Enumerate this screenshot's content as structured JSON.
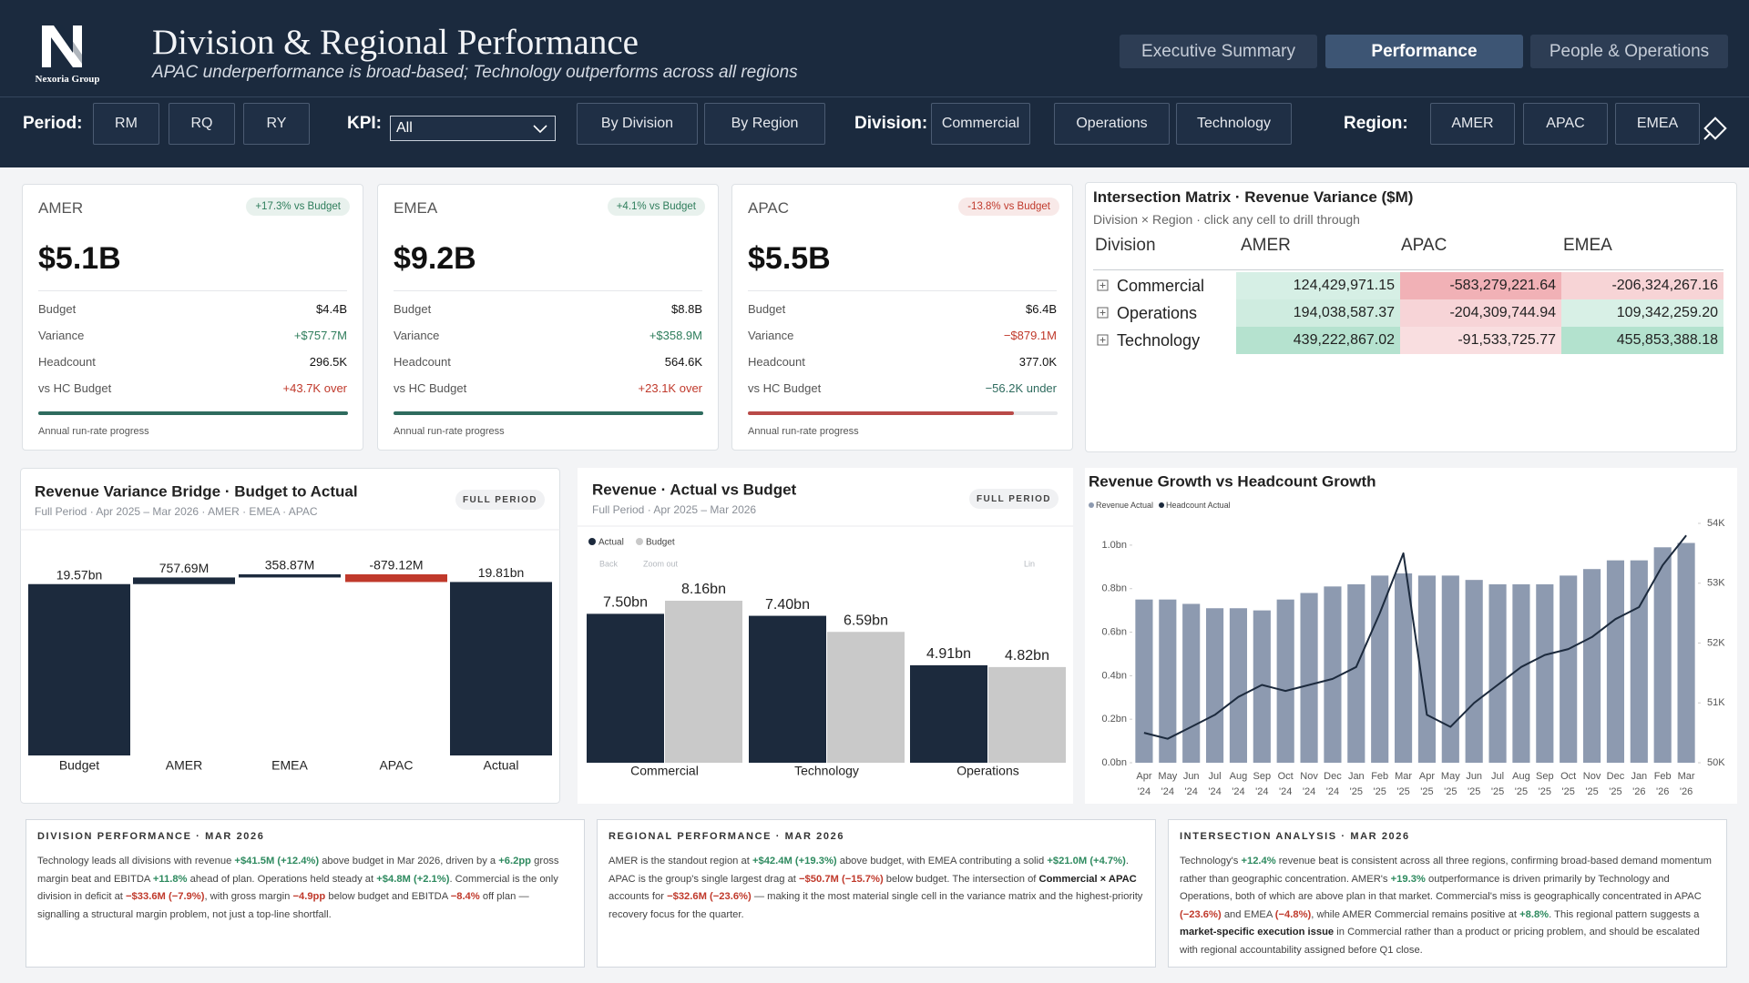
{
  "header": {
    "company": "Nexoria Group",
    "title": "Division & Regional Performance",
    "subtitle": "APAC underperformance is broad-based; Technology outperforms across all regions",
    "tabs": [
      "Executive Summary",
      "Performance",
      "People & Operations"
    ]
  },
  "filters": {
    "period_label": "Period:",
    "periods": [
      "RM",
      "RQ",
      "RY"
    ],
    "kpi_label": "KPI:",
    "kpi_value": "All",
    "views": [
      "By Division",
      "By Region"
    ],
    "division_label": "Division:",
    "divisions": [
      "Commercial",
      "Operations",
      "Technology"
    ],
    "region_label": "Region:",
    "regions": [
      "AMER",
      "APAC",
      "EMEA"
    ]
  },
  "kpi_cards": [
    {
      "region": "AMER",
      "badge": "+17.3% vs Budget",
      "badge_color": "#2e7d5b",
      "value": "$5.1B",
      "rows": [
        {
          "label": "Budget",
          "value": "$4.4B"
        },
        {
          "label": "Variance",
          "value": "+$757.7M",
          "color": "#2e7d5b"
        },
        {
          "label": "Headcount",
          "value": "296.5K"
        },
        {
          "label": "vs HC Budget",
          "value": "+43.7K over",
          "color": "#c0392b"
        }
      ],
      "progress": 100,
      "progress_color": "#2e6b5e",
      "progress_label": "Annual run-rate progress"
    },
    {
      "region": "EMEA",
      "badge": "+4.1% vs Budget",
      "badge_color": "#2e7d5b",
      "value": "$9.2B",
      "rows": [
        {
          "label": "Budget",
          "value": "$8.8B"
        },
        {
          "label": "Variance",
          "value": "+$358.9M",
          "color": "#2e7d5b"
        },
        {
          "label": "Headcount",
          "value": "564.6K"
        },
        {
          "label": "vs HC Budget",
          "value": "+23.1K over",
          "color": "#c0392b"
        }
      ],
      "progress": 100,
      "progress_color": "#2e6b5e",
      "progress_label": "Annual run-rate progress"
    },
    {
      "region": "APAC",
      "badge": "-13.8% vs Budget",
      "badge_color": "#c0392b",
      "value": "$5.5B",
      "rows": [
        {
          "label": "Budget",
          "value": "$6.4B"
        },
        {
          "label": "Variance",
          "value": "−$879.1M",
          "color": "#c0392b"
        },
        {
          "label": "Headcount",
          "value": "377.0K"
        },
        {
          "label": "vs HC Budget",
          "value": "−56.2K under",
          "color": "#2e6b5e"
        }
      ],
      "progress": 86,
      "progress_color": "#b94a48",
      "progress_label": "Annual run-rate progress"
    }
  ],
  "matrix": {
    "title": "Intersection Matrix · Revenue Variance ($M)",
    "subtitle": "Division × Region · click any cell to drill through",
    "columns": [
      "Division",
      "AMER",
      "APAC",
      "EMEA"
    ],
    "rows": [
      {
        "name": "Commercial",
        "values": [
          124429971.15,
          -583279221.64,
          -206324267.16
        ],
        "value_labels": [
          "124,429,971.15",
          "-583,279,221.64",
          "-206,324,267.16"
        ]
      },
      {
        "name": "Operations",
        "values": [
          194038587.37,
          -204309744.94,
          109342259.2
        ],
        "value_labels": [
          "194,038,587.37",
          "-204,309,744.94",
          "109,342,259.20"
        ]
      },
      {
        "name": "Technology",
        "values": [
          439222867.02,
          -91533725.77,
          455853388.18
        ],
        "value_labels": [
          "439,222,867.02",
          "-91,533,725.77",
          "455,853,388.18"
        ]
      }
    ]
  },
  "chart_data": [
    {
      "type": "waterfall",
      "title": "Revenue Variance Bridge · Budget to Actual",
      "subtitle": "Full Period · Apr 2025 – Mar 2026 · AMER · EMEA · APAC",
      "badge": "FULL PERIOD",
      "categories": [
        "Budget",
        "AMER",
        "EMEA",
        "APAC",
        "Actual"
      ],
      "values": [
        19.57,
        0.75769,
        0.35887,
        -0.87912,
        19.81
      ],
      "value_labels": [
        "19.57bn",
        "757.69M",
        "358.87M",
        "-879.12M",
        "19.81bn"
      ],
      "color": "#1c2a3d",
      "negative_color": "#c0392b"
    },
    {
      "type": "bar",
      "title": "Revenue · Actual vs Budget",
      "subtitle": "Full Period · Apr 2025 – Mar 2026",
      "badge": "FULL PERIOD",
      "toolbar": [
        "Back",
        "Zoom out",
        "Lin"
      ],
      "categories": [
        "Commercial",
        "Technology",
        "Operations"
      ],
      "series": [
        {
          "name": "Actual",
          "color": "#1c2a3d",
          "values": [
            7.5,
            7.4,
            4.91
          ],
          "value_labels": [
            "7.50bn",
            "7.40bn",
            "4.91bn"
          ]
        },
        {
          "name": "Budget",
          "color": "#c9c9c9",
          "values": [
            8.16,
            6.59,
            4.82
          ],
          "value_labels": [
            "8.16bn",
            "6.59bn",
            "4.82bn"
          ]
        }
      ]
    },
    {
      "type": "combo",
      "title": "Revenue Growth vs Headcount Growth",
      "categories": [
        "Apr '24",
        "May '24",
        "Jun '24",
        "Jul '24",
        "Aug '24",
        "Sep '24",
        "Oct '24",
        "Nov '24",
        "Dec '24",
        "Jan '25",
        "Feb '25",
        "Mar '25",
        "Apr '25",
        "May '25",
        "Jun '25",
        "Jul '25",
        "Aug '25",
        "Sep '25",
        "Oct '25",
        "Nov '25",
        "Dec '25",
        "Jan '26",
        "Feb '26",
        "Mar '26"
      ],
      "series": [
        {
          "name": "Revenue Actual",
          "kind": "bar",
          "color": "#8d9ab0",
          "values": [
            0.75,
            0.75,
            0.73,
            0.71,
            0.71,
            0.7,
            0.75,
            0.78,
            0.81,
            0.82,
            0.86,
            0.87,
            0.86,
            0.86,
            0.84,
            0.82,
            0.82,
            0.82,
            0.86,
            0.89,
            0.93,
            0.93,
            0.99,
            1.01
          ]
        },
        {
          "name": "Headcount Actual",
          "kind": "line",
          "axis": "y2",
          "color": "#1c2a3d",
          "values": [
            50500,
            50400,
            50600,
            50800,
            51100,
            51300,
            51200,
            51300,
            51400,
            51600,
            52500,
            53500,
            50800,
            50600,
            51000,
            51300,
            51600,
            51800,
            51900,
            52100,
            52400,
            52600,
            53300,
            53800
          ]
        }
      ],
      "ylim": [
        0,
        1.1
      ],
      "yticks": [
        {
          "value": 0,
          "label": "0.0bn"
        },
        {
          "value": 0.2,
          "label": "0.2bn"
        },
        {
          "value": 0.4,
          "label": "0.4bn"
        },
        {
          "value": 0.6,
          "label": "0.6bn"
        },
        {
          "value": 0.8,
          "label": "0.8bn"
        },
        {
          "value": 1.0,
          "label": "1.0bn"
        }
      ],
      "y2lim": [
        50000,
        54000
      ],
      "y2ticks": [
        {
          "value": 50000,
          "label": "50K"
        },
        {
          "value": 51000,
          "label": "51K"
        },
        {
          "value": 52000,
          "label": "52K"
        },
        {
          "value": 53000,
          "label": "53K"
        },
        {
          "value": 54000,
          "label": "54K"
        }
      ]
    }
  ],
  "commentary": [
    {
      "heading": "DIVISION PERFORMANCE · MAR 2026",
      "body": [
        "Technology leads all divisions with revenue ",
        {
          "text": "+$41.5M (+12.4%)",
          "tone": "pos"
        },
        " above budget in Mar 2026, driven by a ",
        {
          "text": "+6.2pp",
          "tone": "pos"
        },
        " gross margin beat and EBITDA ",
        {
          "text": "+11.8%",
          "tone": "pos"
        },
        " ahead of plan. Operations held steady at ",
        {
          "text": "+$4.8M (+2.1%)",
          "tone": "pos"
        },
        ". Commercial is the only division in deficit at ",
        {
          "text": "−$33.6M (−7.9%)",
          "tone": "neg"
        },
        ", with gross margin ",
        {
          "text": "−4.9pp",
          "tone": "neg"
        },
        " below budget and EBITDA ",
        {
          "text": "−8.4%",
          "tone": "neg"
        },
        " off plan — signalling a structural margin problem, not just a top-line shortfall."
      ]
    },
    {
      "heading": "REGIONAL PERFORMANCE · MAR 2026",
      "body": [
        "AMER is the standout region at ",
        {
          "text": "+$42.4M (+19.3%)",
          "tone": "pos"
        },
        " above budget, with EMEA contributing a solid ",
        {
          "text": "+$21.0M (+4.7%)",
          "tone": "pos"
        },
        ". APAC is the group's single largest drag at ",
        {
          "text": "−$50.7M (−15.7%)",
          "tone": "neg"
        },
        " below budget. The intersection of ",
        {
          "text": "Commercial × APAC",
          "tone": "bold"
        },
        " accounts for ",
        {
          "text": "−$32.6M (−23.6%)",
          "tone": "neg"
        },
        " — making it the most material single cell in the variance matrix and the highest-priority recovery focus for the quarter."
      ]
    },
    {
      "heading": "INTERSECTION ANALYSIS · MAR 2026",
      "body": [
        "Technology's ",
        {
          "text": "+12.4%",
          "tone": "pos"
        },
        " revenue beat is consistent across all three regions, confirming broad-based demand momentum rather than geographic concentration. AMER's ",
        {
          "text": "+19.3%",
          "tone": "pos"
        },
        " outperformance is driven primarily by Technology and Operations, both of which are above plan in that market. Commercial's miss is geographically concentrated in APAC ",
        {
          "text": "(−23.6%)",
          "tone": "neg"
        },
        " and EMEA ",
        {
          "text": "(−4.8%)",
          "tone": "neg"
        },
        ", while AMER Commercial remains positive at ",
        {
          "text": "+8.8%",
          "tone": "pos"
        },
        ". This regional pattern suggests a ",
        {
          "text": "market-specific execution issue",
          "tone": "bold"
        },
        " in Commercial rather than a product or pricing problem, and should be escalated with regional accountability assigned before Q1 close."
      ]
    }
  ]
}
